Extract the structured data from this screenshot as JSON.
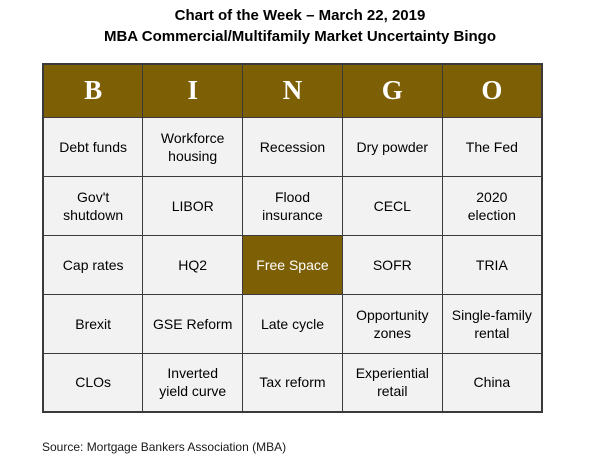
{
  "header": {
    "title": "Chart of the Week – March 22, 2019",
    "subtitle": "MBA Commercial/Multifamily Market Uncertainty Bingo"
  },
  "footer": {
    "source": "Source: Mortgage Bankers Association (MBA)"
  },
  "colors": {
    "gold": "#7d5f05",
    "cell_background": "#f2f2f2",
    "border": "#3a3a3a",
    "header_text": "#ffffff"
  },
  "chart_data": {
    "type": "table",
    "title": "Chart of the Week – March 22, 2019",
    "subtitle": "MBA Commercial/Multifamily Market Uncertainty Bingo",
    "columns": [
      "B",
      "I",
      "N",
      "G",
      "O"
    ],
    "rows": [
      [
        "Debt funds",
        "Workforce\nhousing",
        "Recession",
        "Dry powder",
        "The Fed"
      ],
      [
        "Gov't\nshutdown",
        "LIBOR",
        "Flood\ninsurance",
        "CECL",
        "2020\nelection"
      ],
      [
        "Cap rates",
        "HQ2",
        "Free Space",
        "SOFR",
        "TRIA"
      ],
      [
        "Brexit",
        "GSE Reform",
        "Late cycle",
        "Opportunity\nzones",
        "Single-family\nrental"
      ],
      [
        "CLOs",
        "Inverted\nyield curve",
        "Tax reform",
        "Experiential\nretail",
        "China"
      ]
    ],
    "highlighted_cell": {
      "row": 2,
      "col": 2,
      "label": "Free Space"
    },
    "legend_position": "none",
    "grid": true,
    "source": "Source: Mortgage Bankers Association (MBA)"
  }
}
